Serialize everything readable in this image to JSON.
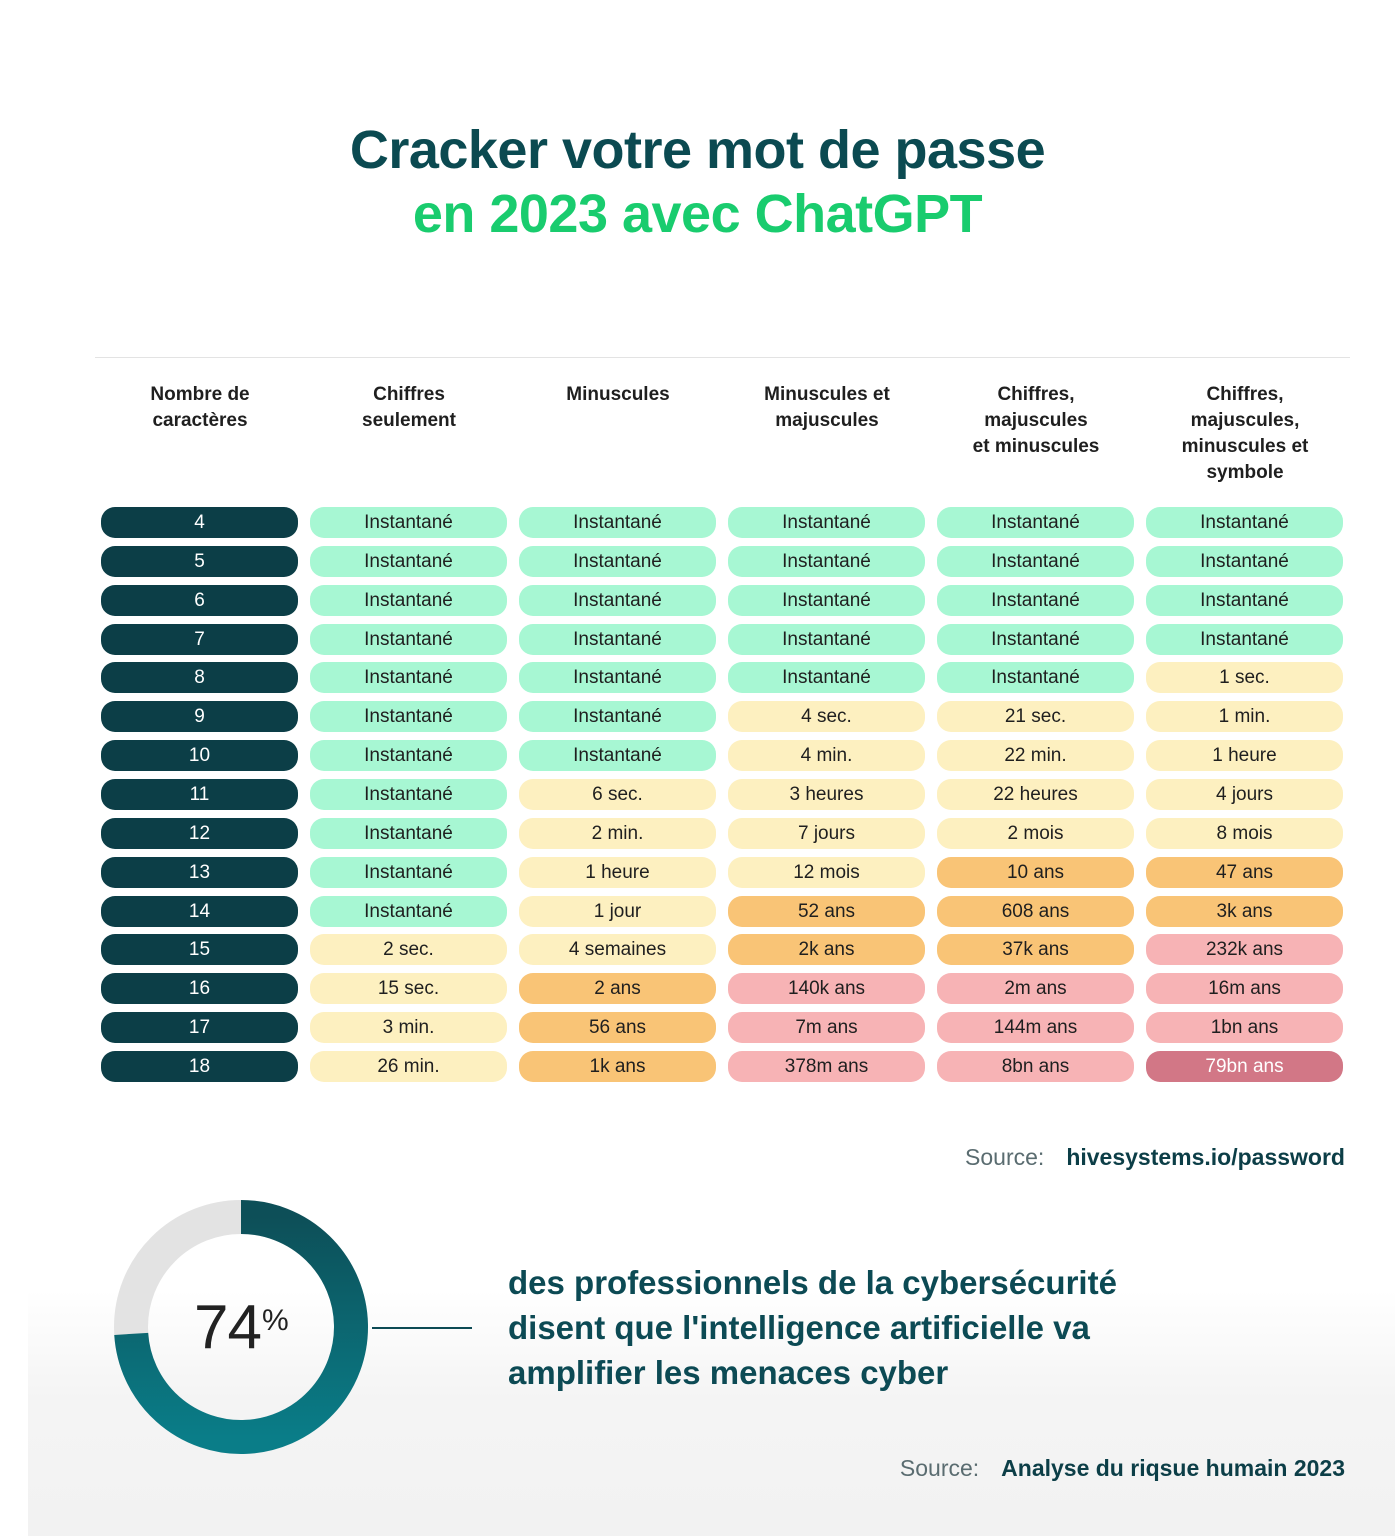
{
  "title": {
    "line1": "Cracker votre mot de passe",
    "line2": "en 2023 avec ChatGPT"
  },
  "colors": {
    "dark_teal": "#0c3e47",
    "green_title": "#19cc6e",
    "instant": "#a7f7d3",
    "seconds_to_months": "#fdf0c0",
    "years": "#f9c476",
    "thousands_of_years": "#f7b3b5",
    "extreme": "#d27786"
  },
  "chart_data": {
    "type": "table",
    "columns": [
      "Nombre de\ncaractères",
      "Chiffres\nseulement",
      "Minuscules",
      "Minuscules et\nmajuscules",
      "Chiffres,\nmajuscules\net minuscules",
      "Chiffres,\nmajuscules,\nminuscules et\nsymbole"
    ],
    "rows": [
      {
        "chars": "4",
        "values": [
          "Instantané",
          "Instantané",
          "Instantané",
          "Instantané",
          "Instantané"
        ],
        "levels": [
          "green",
          "green",
          "green",
          "green",
          "green"
        ]
      },
      {
        "chars": "5",
        "values": [
          "Instantané",
          "Instantané",
          "Instantané",
          "Instantané",
          "Instantané"
        ],
        "levels": [
          "green",
          "green",
          "green",
          "green",
          "green"
        ]
      },
      {
        "chars": "6",
        "values": [
          "Instantané",
          "Instantané",
          "Instantané",
          "Instantané",
          "Instantané"
        ],
        "levels": [
          "green",
          "green",
          "green",
          "green",
          "green"
        ]
      },
      {
        "chars": "7",
        "values": [
          "Instantané",
          "Instantané",
          "Instantané",
          "Instantané",
          "Instantané"
        ],
        "levels": [
          "green",
          "green",
          "green",
          "green",
          "green"
        ]
      },
      {
        "chars": "8",
        "values": [
          "Instantané",
          "Instantané",
          "Instantané",
          "Instantané",
          "1 sec."
        ],
        "levels": [
          "green",
          "green",
          "green",
          "green",
          "yellow"
        ]
      },
      {
        "chars": "9",
        "values": [
          "Instantané",
          "Instantané",
          "4 sec.",
          "21 sec.",
          "1 min."
        ],
        "levels": [
          "green",
          "green",
          "yellow",
          "yellow",
          "yellow"
        ]
      },
      {
        "chars": "10",
        "values": [
          "Instantané",
          "Instantané",
          "4 min.",
          "22 min.",
          "1 heure"
        ],
        "levels": [
          "green",
          "green",
          "yellow",
          "yellow",
          "yellow"
        ]
      },
      {
        "chars": "11",
        "values": [
          "Instantané",
          "6 sec.",
          "3 heures",
          "22 heures",
          "4 jours"
        ],
        "levels": [
          "green",
          "yellow",
          "yellow",
          "yellow",
          "yellow"
        ]
      },
      {
        "chars": "12",
        "values": [
          "Instantané",
          "2 min.",
          "7 jours",
          "2 mois",
          "8 mois"
        ],
        "levels": [
          "green",
          "yellow",
          "yellow",
          "yellow",
          "yellow"
        ]
      },
      {
        "chars": "13",
        "values": [
          "Instantané",
          "1 heure",
          "12 mois",
          "10 ans",
          "47 ans"
        ],
        "levels": [
          "green",
          "yellow",
          "yellow",
          "orange",
          "orange"
        ]
      },
      {
        "chars": "14",
        "values": [
          "Instantané",
          "1 jour",
          "52 ans",
          "608 ans",
          "3k ans"
        ],
        "levels": [
          "green",
          "yellow",
          "orange",
          "orange",
          "orange"
        ]
      },
      {
        "chars": "15",
        "values": [
          "2 sec.",
          "4 semaines",
          "2k ans",
          "37k ans",
          "232k ans"
        ],
        "levels": [
          "yellow",
          "yellow",
          "orange",
          "orange",
          "pink"
        ]
      },
      {
        "chars": "16",
        "values": [
          "15 sec.",
          "2 ans",
          "140k ans",
          "2m ans",
          "16m ans"
        ],
        "levels": [
          "yellow",
          "orange",
          "pink",
          "pink",
          "pink"
        ]
      },
      {
        "chars": "17",
        "values": [
          "3 min.",
          "56 ans",
          "7m ans",
          "144m ans",
          "1bn ans"
        ],
        "levels": [
          "yellow",
          "orange",
          "pink",
          "pink",
          "pink"
        ]
      },
      {
        "chars": "18",
        "values": [
          "26 min.",
          "1k ans",
          "378m ans",
          "8bn  ans",
          "79bn ans"
        ],
        "levels": [
          "yellow",
          "orange",
          "pink",
          "pink",
          "red"
        ]
      }
    ]
  },
  "source1": {
    "label": "Source:",
    "value": "hivesystems.io/password"
  },
  "stat": {
    "value": 74,
    "number_text": "74",
    "percent_sign": "%",
    "text": "des professionnels de la cybersécurité disent que l'intelligence artificielle va amplifier les menaces cyber"
  },
  "source2": {
    "label": "Source:",
    "value": "Analyse du riqsue humain 2023"
  }
}
